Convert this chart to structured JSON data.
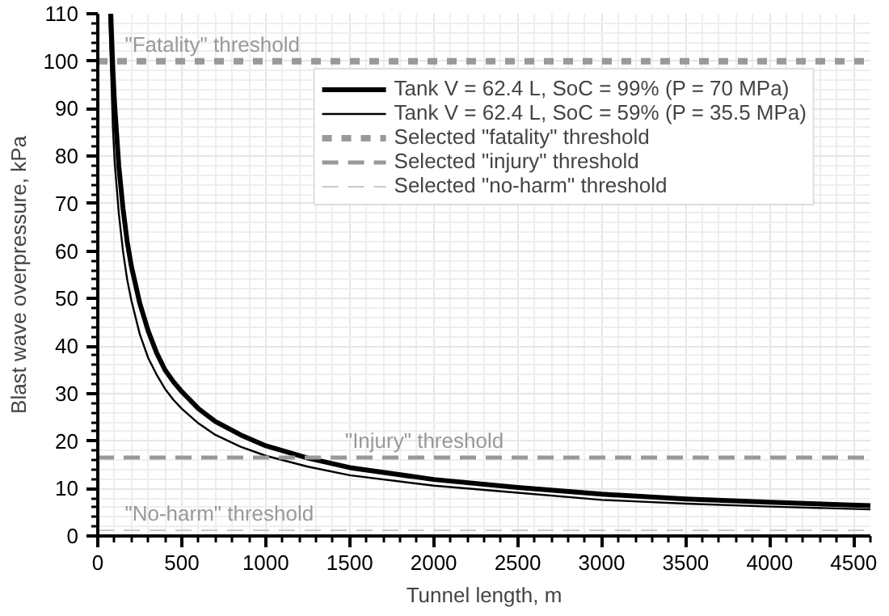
{
  "chart_data": {
    "type": "line",
    "xlabel": "Tunnel length, m",
    "ylabel": "Blast wave overpressure, kPa",
    "xlim": [
      0,
      4600
    ],
    "ylim": [
      0,
      110
    ],
    "xticks": [
      0,
      500,
      1000,
      1500,
      2000,
      2500,
      3000,
      3500,
      4000,
      4500
    ],
    "yticks": [
      0,
      10,
      20,
      30,
      40,
      50,
      60,
      70,
      80,
      90,
      100,
      110
    ],
    "grid": true,
    "legend": "top right",
    "line_style": "solid",
    "marker": "none",
    "series": [
      {
        "name": "Tank V = 62.4 L, SoC = 99% (P = 70 MPa)",
        "color": "#000000",
        "x": [
          77,
          90,
          100,
          125,
          150,
          175,
          200,
          250,
          300,
          350,
          400,
          450,
          500,
          600,
          700,
          850,
          1000,
          1250,
          1500,
          2000,
          2500,
          3000,
          3500,
          4000,
          4600
        ],
        "values": [
          110,
          98,
          91,
          78,
          69,
          62,
          56.8,
          49,
          43.2,
          38.6,
          35,
          32.5,
          30.4,
          26.8,
          24.1,
          21.3,
          19,
          16.4,
          14.4,
          11.9,
          10.2,
          8.8,
          7.8,
          7.1,
          6.4
        ]
      },
      {
        "name": "Tank V = 62.4 L, SoC = 59% (P = 35.5 MPa)",
        "color": "#000000",
        "x": [
          68,
          80,
          90,
          100,
          125,
          150,
          175,
          200,
          250,
          300,
          350,
          400,
          450,
          500,
          600,
          700,
          850,
          1000,
          1250,
          1500,
          2000,
          2500,
          3000,
          3500,
          4000,
          4600
        ],
        "values": [
          110,
          97,
          86,
          79,
          68,
          60,
          54,
          49.6,
          42.5,
          37.5,
          34,
          31,
          28.7,
          26.8,
          23.7,
          21.3,
          18.8,
          16.9,
          14.6,
          12.8,
          10.6,
          9.1,
          7.6,
          6.8,
          6.2,
          5.6
        ]
      }
    ],
    "ref_lines": [
      {
        "axis": "y",
        "value": 100,
        "label": "Selected \"fatality\" threshold",
        "color": "#999999",
        "line_style": "dashed"
      },
      {
        "axis": "y",
        "value": 16.5,
        "label": "Selected \"injury\" threshold",
        "color": "#999999",
        "line_style": "dashed"
      },
      {
        "axis": "y",
        "value": 1.2,
        "label": "Selected \"no-harm\" threshold",
        "color": "#c8c8c8",
        "line_style": "dashed"
      }
    ],
    "annotations": [
      "\"Fatality\" threshold",
      "\"Injury\" threshold",
      "\"No-harm\" threshold"
    ]
  }
}
